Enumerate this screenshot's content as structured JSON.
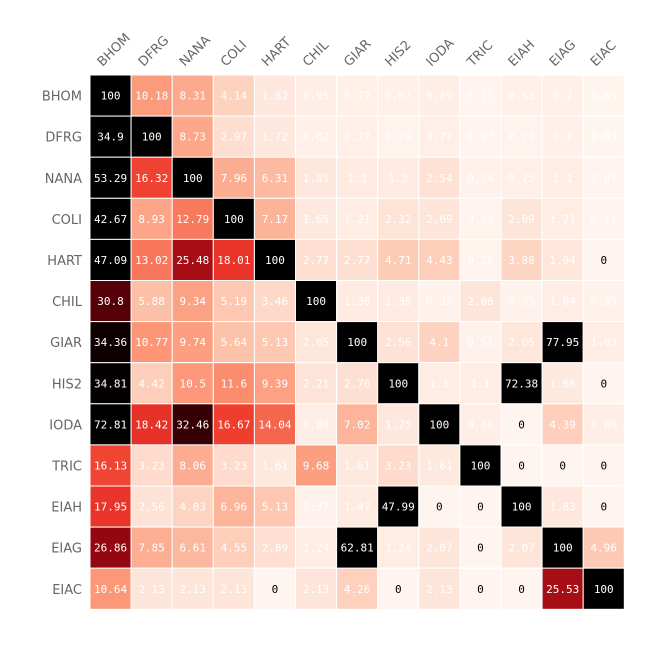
{
  "chart_data": {
    "type": "heatmap",
    "title": "",
    "xlabel": "",
    "ylabel": "",
    "x_labels": [
      "BHOM",
      "DFRG",
      "NANA",
      "COLI",
      "HART",
      "CHIL",
      "GIAR",
      "HIS2",
      "IODA",
      "TRIC",
      "EIAH",
      "EIAG",
      "EIAC"
    ],
    "y_labels": [
      "BHOM",
      "DFRG",
      "NANA",
      "COLI",
      "HART",
      "CHIL",
      "GIAR",
      "HIS2",
      "IODA",
      "TRIC",
      "EIAH",
      "EIAG",
      "EIAC"
    ],
    "value_range": [
      0,
      35
    ],
    "colormap": "Reds",
    "grid_color": "#ffffff",
    "values": [
      [
        "100",
        "10.18",
        "8.31",
        "4.14",
        "1.82",
        "0.95",
        "0.72",
        "0.67",
        "0.89",
        "0.11",
        "0.53",
        "0.7",
        "0.05"
      ],
      [
        "34.9",
        "100",
        "8.73",
        "2.97",
        "1.72",
        "0.62",
        "0.77",
        "0.29",
        "0.77",
        "0.07",
        "0.26",
        "0.7",
        "0.03"
      ],
      [
        "53.29",
        "16.32",
        "100",
        "7.96",
        "6.31",
        "1.85",
        "1.3",
        "1.3",
        "2.54",
        "0.34",
        "0.75",
        "1.1",
        "0.07"
      ],
      [
        "42.67",
        "8.93",
        "12.79",
        "100",
        "7.17",
        "1.65",
        "1.21",
        "2.32",
        "2.09",
        "0.22",
        "2.09",
        "1.21",
        "0.11"
      ],
      [
        "47.09",
        "13.02",
        "25.48",
        "18.01",
        "100",
        "2.77",
        "2.77",
        "4.71",
        "4.43",
        "0.28",
        "3.88",
        "1.94",
        "0"
      ],
      [
        "30.8",
        "5.88",
        "9.34",
        "5.19",
        "3.46",
        "100",
        "1.38",
        "1.38",
        "0.35",
        "2.08",
        "0.35",
        "1.04",
        "0.35"
      ],
      [
        "34.36",
        "10.77",
        "9.74",
        "5.64",
        "5.13",
        "2.05",
        "100",
        "2.56",
        "4.1",
        "0.51",
        "2.05",
        "77.95",
        "1.03"
      ],
      [
        "34.81",
        "4.42",
        "10.5",
        "11.6",
        "9.39",
        "2.21",
        "2.76",
        "100",
        "1.1",
        "1.1",
        "72.38",
        "1.66",
        "0"
      ],
      [
        "72.81",
        "18.42",
        "32.46",
        "16.67",
        "14.04",
        "0.88",
        "7.02",
        "1.75",
        "100",
        "0.88",
        "0",
        "4.39",
        "0.88"
      ],
      [
        "16.13",
        "3.23",
        "8.06",
        "3.23",
        "1.61",
        "9.68",
        "1.61",
        "3.23",
        "1.61",
        "100",
        "0",
        "0",
        "0"
      ],
      [
        "17.95",
        "2.56",
        "4.03",
        "6.96",
        "5.13",
        "0.37",
        "1.47",
        "47.99",
        "0",
        "0",
        "100",
        "1.83",
        "0"
      ],
      [
        "26.86",
        "7.85",
        "6.61",
        "4.55",
        "2.89",
        "1.24",
        "62.81",
        "1.24",
        "2.07",
        "0",
        "2.07",
        "100",
        "4.96"
      ],
      [
        "10.64",
        "2.13",
        "2.13",
        "2.13",
        "0",
        "2.13",
        "4.26",
        "0",
        "2.13",
        "0",
        "0",
        "25.53",
        "100"
      ]
    ]
  }
}
